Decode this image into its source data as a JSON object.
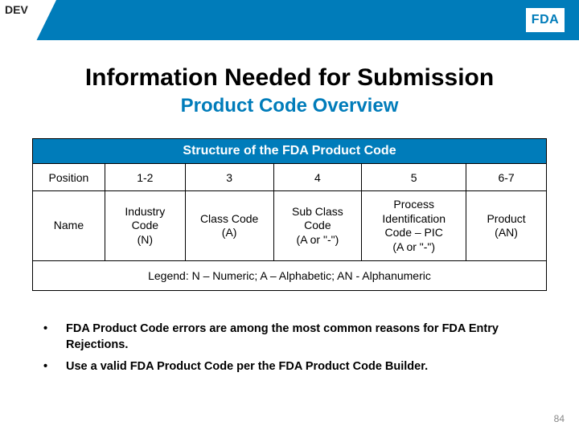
{
  "dev_label": "DEV",
  "logo_text": "FDA",
  "title": "Information Needed for Submission",
  "subtitle": "Product Code Overview",
  "table": {
    "caption": "Structure of the FDA Product Code",
    "columns": [
      "",
      "1-2",
      "3",
      "4",
      "5",
      "6-7"
    ],
    "row_labels": {
      "position": "Position",
      "name": "Name"
    },
    "name_cells": [
      "Industry\nCode\n(N)",
      "Class Code\n(A)",
      "Sub Class\nCode\n(A or \"-\")",
      "Process\nIdentification\nCode – PIC\n(A or \"-\")",
      "Product\n(AN)"
    ],
    "legend": "Legend: N – Numeric; A – Alphabetic; AN - Alphanumeric"
  },
  "bullets": [
    "FDA Product Code errors are among the most common reasons for FDA Entry Rejections.",
    "Use a valid FDA Product Code per the FDA Product Code Builder."
  ],
  "page_number": "84",
  "colors": {
    "brand": "#007cba",
    "text": "#000000",
    "page_num": "#888888"
  }
}
